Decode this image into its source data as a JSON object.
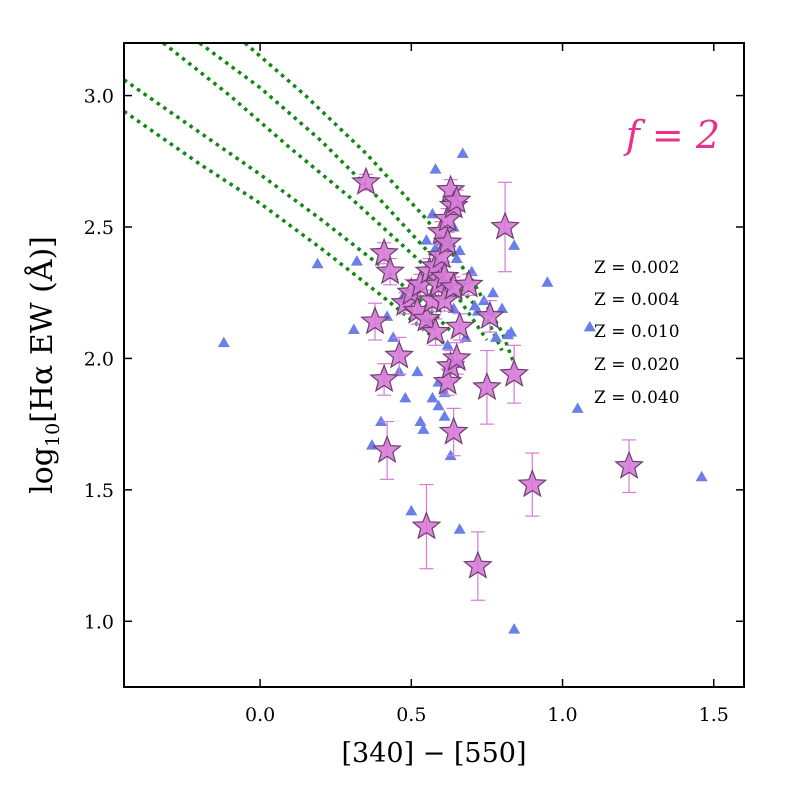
{
  "chart_data": {
    "type": "scatter",
    "xlabel": "[340] − [550]",
    "ylabel_main": "log",
    "ylabel_sub": "10",
    "ylabel_rest": "[Hα EW (Å)]",
    "xlim": [
      -0.45,
      1.6
    ],
    "ylim": [
      0.75,
      3.2
    ],
    "xticks": [
      0.0,
      0.5,
      1.0,
      1.5
    ],
    "xtick_labels": [
      "0.0",
      "0.5",
      "1.0",
      "1.5"
    ],
    "yticks": [
      1.0,
      1.5,
      2.0,
      2.5,
      3.0
    ],
    "ytick_labels": [
      "1.0",
      "1.5",
      "2.0",
      "2.5",
      "3.0"
    ],
    "annotation": "f = 2",
    "legend": [
      "Z = 0.002",
      "Z = 0.004",
      "Z = 0.010",
      "Z = 0.020",
      "Z = 0.040"
    ],
    "legend_placement": "right",
    "colors": {
      "triangles": "#6b7fe8",
      "stars": "#d77ad8",
      "star_edge": "#6b3f6e",
      "errorbars": "#d77ad8",
      "tracks": "#118811",
      "annotation": "#e8308c"
    },
    "triangles": [
      [
        -0.12,
        2.06
      ],
      [
        0.19,
        2.36
      ],
      [
        0.31,
        2.11
      ],
      [
        0.32,
        2.37
      ],
      [
        0.37,
        1.67
      ],
      [
        0.4,
        1.76
      ],
      [
        0.42,
        2.16
      ],
      [
        0.46,
        1.95
      ],
      [
        0.48,
        1.85
      ],
      [
        0.5,
        1.42
      ],
      [
        0.52,
        1.95
      ],
      [
        0.53,
        1.76
      ],
      [
        0.54,
        1.73
      ],
      [
        0.55,
        2.45
      ],
      [
        0.56,
        2.14
      ],
      [
        0.57,
        1.85
      ],
      [
        0.57,
        2.55
      ],
      [
        0.58,
        2.72
      ],
      [
        0.58,
        2.42
      ],
      [
        0.59,
        1.82
      ],
      [
        0.59,
        1.91
      ],
      [
        0.6,
        2.45
      ],
      [
        0.61,
        1.87
      ],
      [
        0.61,
        1.78
      ],
      [
        0.62,
        1.97
      ],
      [
        0.62,
        2.05
      ],
      [
        0.63,
        2.44
      ],
      [
        0.63,
        1.63
      ],
      [
        0.64,
        2.5
      ],
      [
        0.64,
        2.19
      ],
      [
        0.65,
        2.38
      ],
      [
        0.66,
        2.41
      ],
      [
        0.66,
        1.98
      ],
      [
        0.66,
        1.35
      ],
      [
        0.67,
        2.78
      ],
      [
        0.68,
        2.08
      ],
      [
        0.7,
        2.33
      ],
      [
        0.71,
        2.2
      ],
      [
        0.72,
        2.18
      ],
      [
        0.74,
        2.22
      ],
      [
        0.76,
        2.18
      ],
      [
        0.77,
        2.25
      ],
      [
        0.78,
        2.08
      ],
      [
        0.8,
        2.19
      ],
      [
        0.82,
        2.09
      ],
      [
        0.83,
        2.1
      ],
      [
        0.84,
        0.97
      ],
      [
        0.84,
        2.43
      ],
      [
        0.95,
        2.29
      ],
      [
        1.05,
        1.81
      ],
      [
        1.09,
        2.12
      ],
      [
        1.46,
        1.55
      ],
      [
        0.47,
        2.23
      ],
      [
        0.52,
        2.28
      ],
      [
        0.6,
        2.27
      ],
      [
        0.44,
        2.08
      ]
    ],
    "stars": [
      [
        0.35,
        2.67,
        0.03
      ],
      [
        0.38,
        2.14,
        0.07
      ],
      [
        0.41,
        2.4,
        0.04
      ],
      [
        0.41,
        1.92,
        0.06
      ],
      [
        0.42,
        1.65,
        0.11
      ],
      [
        0.43,
        2.33,
        0.05
      ],
      [
        0.46,
        2.01,
        0.07
      ],
      [
        0.48,
        2.21,
        0.04
      ],
      [
        0.5,
        2.25,
        0.05
      ],
      [
        0.52,
        2.18,
        0.05
      ],
      [
        0.53,
        2.28,
        0.04
      ],
      [
        0.55,
        2.15,
        0.04
      ],
      [
        0.55,
        1.36,
        0.16
      ],
      [
        0.56,
        2.33,
        0.05
      ],
      [
        0.57,
        2.22,
        0.04
      ],
      [
        0.58,
        2.1,
        0.05
      ],
      [
        0.58,
        2.35,
        0.04
      ],
      [
        0.59,
        2.28,
        0.05
      ],
      [
        0.6,
        2.39,
        0.04
      ],
      [
        0.6,
        2.48,
        0.04
      ],
      [
        0.61,
        2.31,
        0.04
      ],
      [
        0.61,
        2.22,
        0.04
      ],
      [
        0.62,
        2.53,
        0.04
      ],
      [
        0.62,
        2.44,
        0.04
      ],
      [
        0.62,
        1.91,
        0.05
      ],
      [
        0.63,
        2.64,
        0.04
      ],
      [
        0.63,
        1.97,
        0.06
      ],
      [
        0.64,
        2.58,
        0.04
      ],
      [
        0.64,
        2.27,
        0.04
      ],
      [
        0.64,
        1.72,
        0.09
      ],
      [
        0.65,
        2.6,
        0.04
      ],
      [
        0.65,
        2.0,
        0.06
      ],
      [
        0.66,
        2.12,
        0.05
      ],
      [
        0.69,
        2.28,
        0.04
      ],
      [
        0.72,
        1.21,
        0.13
      ],
      [
        0.75,
        1.89,
        0.14
      ],
      [
        0.76,
        2.16,
        0.06
      ],
      [
        0.81,
        2.5,
        0.17
      ],
      [
        0.84,
        1.94,
        0.11
      ],
      [
        0.9,
        1.52,
        0.12
      ],
      [
        1.22,
        1.59,
        0.1
      ]
    ],
    "tracks": [
      [
        [
          -0.45,
          2.94
        ],
        [
          -0.2,
          2.74
        ],
        [
          0.0,
          2.59
        ],
        [
          0.2,
          2.42
        ],
        [
          0.4,
          2.24
        ],
        [
          0.55,
          2.1
        ],
        [
          0.62,
          2.05
        ]
      ],
      [
        [
          -0.45,
          3.06
        ],
        [
          -0.2,
          2.86
        ],
        [
          0.0,
          2.7
        ],
        [
          0.2,
          2.53
        ],
        [
          0.4,
          2.35
        ],
        [
          0.55,
          2.2
        ],
        [
          0.65,
          2.08
        ]
      ],
      [
        [
          -0.32,
          3.2
        ],
        [
          -0.1,
          3.0
        ],
        [
          0.1,
          2.8
        ],
        [
          0.3,
          2.61
        ],
        [
          0.5,
          2.4
        ],
        [
          0.65,
          2.24
        ],
        [
          0.75,
          2.07
        ]
      ],
      [
        [
          -0.2,
          3.2
        ],
        [
          0.0,
          3.03
        ],
        [
          0.2,
          2.83
        ],
        [
          0.4,
          2.6
        ],
        [
          0.6,
          2.35
        ],
        [
          0.75,
          2.15
        ],
        [
          0.8,
          2.03
        ]
      ],
      [
        [
          -0.05,
          3.2
        ],
        [
          0.15,
          3.0
        ],
        [
          0.35,
          2.78
        ],
        [
          0.55,
          2.53
        ],
        [
          0.7,
          2.3
        ],
        [
          0.8,
          2.1
        ],
        [
          0.84,
          1.98
        ]
      ]
    ]
  }
}
